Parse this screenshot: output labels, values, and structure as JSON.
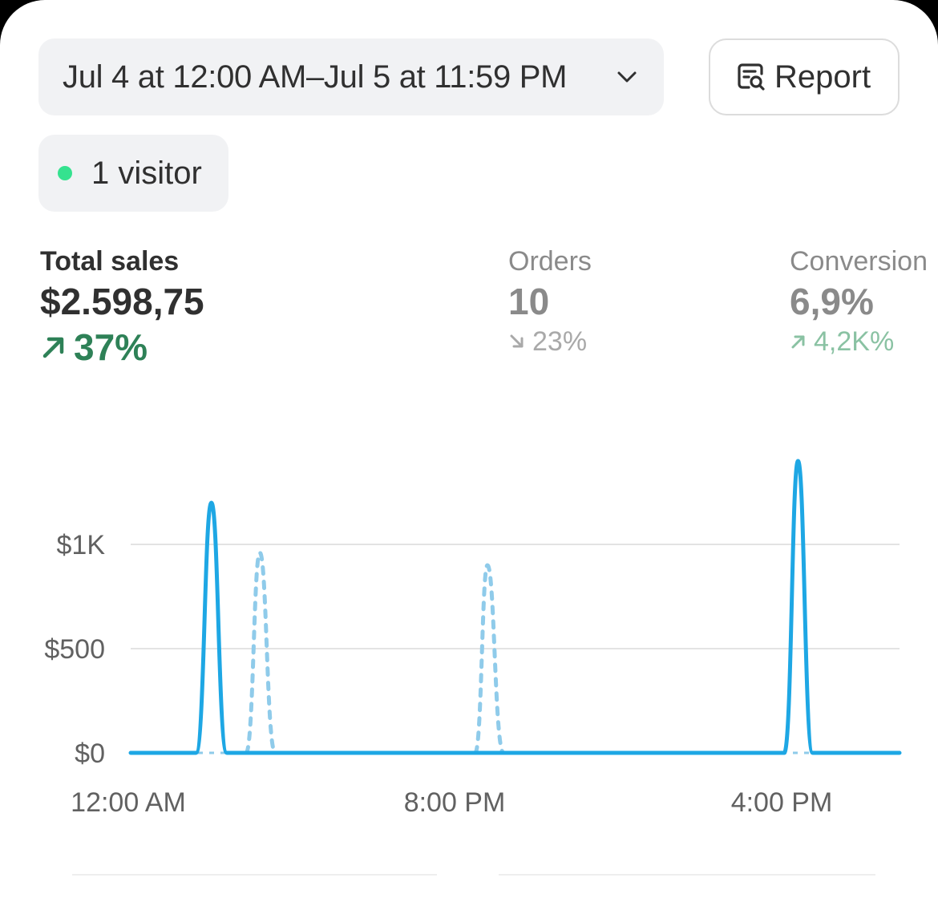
{
  "header": {
    "date_range_label": "Jul 4 at 12:00 AM–Jul 5 at 11:59 PM",
    "report_label": "Report",
    "live_visitors_label": "1 visitor",
    "live_dot_color": "#35e28f"
  },
  "metrics": {
    "total_sales": {
      "label": "Total sales",
      "value": "$2.598,75",
      "delta": "37%",
      "direction": "up",
      "color": "#2e8157"
    },
    "orders": {
      "label": "Orders",
      "value": "10",
      "delta": "23%",
      "direction": "down"
    },
    "conversion": {
      "label": "Conversion",
      "value": "6,9%",
      "delta": "4,2K%",
      "direction": "up"
    }
  },
  "chart_data": {
    "type": "line",
    "y_ticks": [
      "$0",
      "$500",
      "$1K"
    ],
    "x_ticks": [
      "12:00 AM",
      "8:00 PM",
      "4:00 PM"
    ],
    "ylim": [
      0,
      1400
    ],
    "line_color": "#1ea7e4",
    "comparison_color": "#8fcbea",
    "series": [
      {
        "style": "solid",
        "points": [
          {
            "x": 0,
            "y": 0
          },
          {
            "x": 0.085,
            "y": 0
          },
          {
            "x": 0.105,
            "y": 1200
          },
          {
            "x": 0.125,
            "y": 0
          },
          {
            "x": 0.85,
            "y": 0
          },
          {
            "x": 0.868,
            "y": 1400
          },
          {
            "x": 0.887,
            "y": 0
          },
          {
            "x": 1,
            "y": 0
          }
        ]
      },
      {
        "style": "dashed",
        "points": [
          {
            "x": 0.15,
            "y": 0
          },
          {
            "x": 0.168,
            "y": 960
          },
          {
            "x": 0.188,
            "y": 0
          },
          {
            "x": 0.448,
            "y": 0
          },
          {
            "x": 0.464,
            "y": 900
          },
          {
            "x": 0.485,
            "y": 0
          }
        ]
      }
    ]
  }
}
